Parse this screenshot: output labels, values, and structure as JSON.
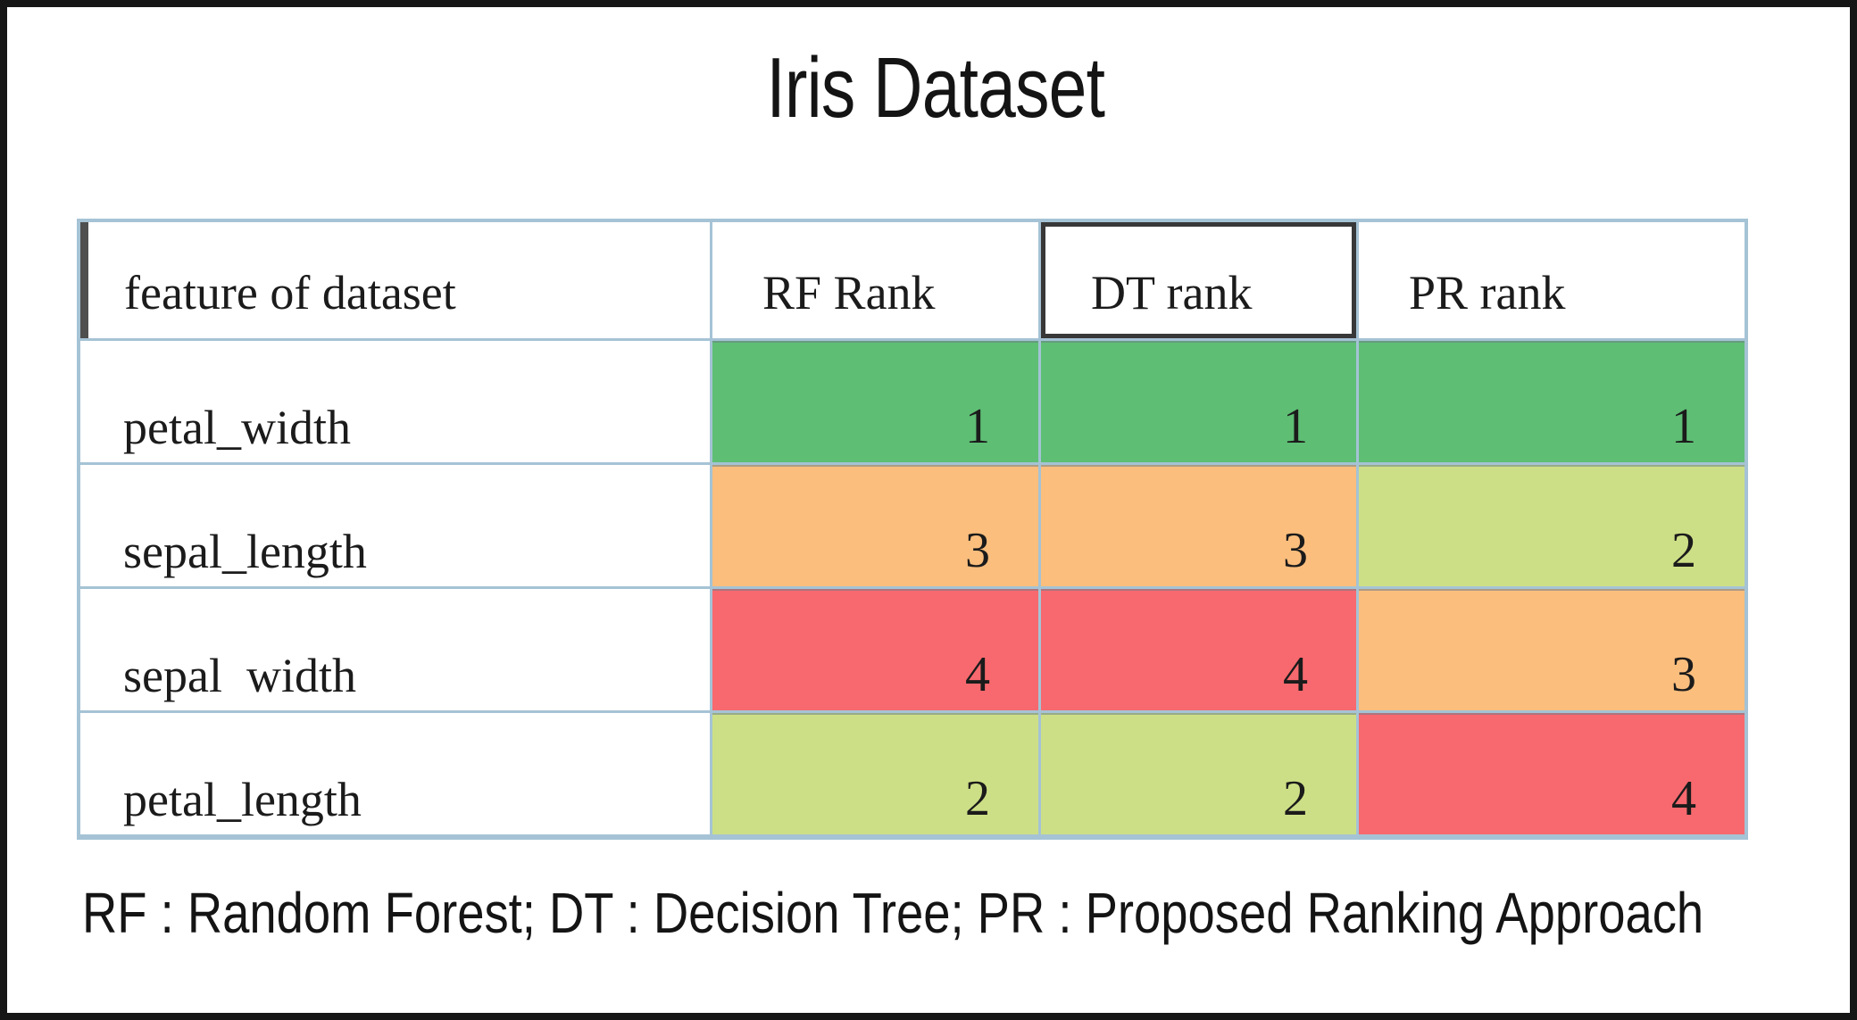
{
  "title": "Iris Dataset",
  "footer": "RF : Random Forest; DT : Decision Tree; PR : Proposed Ranking Approach",
  "table": {
    "columns": [
      "feature of dataset",
      "RF Rank",
      "DT rank",
      "PR rank"
    ],
    "rows": [
      {
        "feature": "petal_width",
        "values": [
          "1",
          "1",
          "1"
        ]
      },
      {
        "feature": "sepal_length",
        "values": [
          "3",
          "3",
          "2"
        ]
      },
      {
        "feature": "sepal  width",
        "values": [
          "4",
          "4",
          "3"
        ]
      },
      {
        "feature": "petal_length",
        "values": [
          "2",
          "2",
          "4"
        ]
      }
    ]
  },
  "rank_colors": {
    "1": "#5ebe74",
    "2": "#cddf86",
    "3": "#fbbe7d",
    "4": "#f7696e"
  },
  "colors": {
    "grid_border": "#a5c3d5",
    "selected_cell_border": "#383838",
    "header_left_bar": "#4f4f4f",
    "outer_frame": "#161616",
    "text": "#1b1b1b"
  },
  "chart_data": {
    "type": "table",
    "title": "Iris Dataset",
    "columns": [
      "feature of dataset",
      "RF Rank",
      "DT rank",
      "PR rank"
    ],
    "rows": [
      [
        "petal_width",
        1,
        1,
        1
      ],
      [
        "sepal_length",
        3,
        3,
        2
      ],
      [
        "sepal  width",
        4,
        4,
        3
      ],
      [
        "petal_length",
        2,
        2,
        4
      ]
    ],
    "note": "RF : Random Forest; DT : Decision Tree; PR : Proposed Ranking Approach",
    "cell_color_scale": {
      "1": "#5ebe74",
      "2": "#cddf86",
      "3": "#fbbe7d",
      "4": "#f7696e"
    },
    "layout_hints": "rank cells color-coded green(best)→red(worst); DT rank header outlined dark; gridlines light blue"
  }
}
